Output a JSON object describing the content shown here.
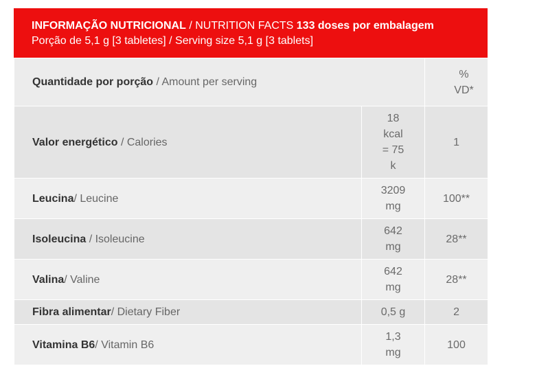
{
  "header": {
    "line1_bold": "INFORMAÇÃO NUTRICIONAL",
    "line1_regular": " / NUTRITION FACTS ",
    "line1_doses": "133 doses por embalagem",
    "line2": "Porção de 5,1 g [3 tabletes] / Serving size 5,1 g [3 tablets]"
  },
  "table_header": {
    "label_bold": "Quantidade por porção",
    "label_regular": " / Amount per serving",
    "vd_line1": "%",
    "vd_line2": "VD*"
  },
  "rows": [
    {
      "name_bold": "Valor energético",
      "name_regular": " / Calories",
      "value": "18 kcal = 75 k",
      "vd": "1"
    },
    {
      "name_bold": "Leucina",
      "name_regular": "/ Leucine",
      "value": "3209 mg",
      "vd": "100**"
    },
    {
      "name_bold": "Isoleucina",
      "name_regular": " / Isoleucine",
      "value": "642 mg",
      "vd": "28**"
    },
    {
      "name_bold": "Valina",
      "name_regular": "/ Valine",
      "value": "642 mg",
      "vd": "28**"
    },
    {
      "name_bold": "Fibra alimentar",
      "name_regular": "/ Dietary Fiber",
      "value": "0,5 g",
      "vd": "2"
    },
    {
      "name_bold": "Vitamina B6",
      "name_regular": "/ Vitamin B6",
      "value": "1,3 mg",
      "vd": "100"
    }
  ],
  "colors": {
    "header_bg": "#ed0f0f",
    "row_dark": "#e4e4e4",
    "row_light": "#efefef"
  }
}
